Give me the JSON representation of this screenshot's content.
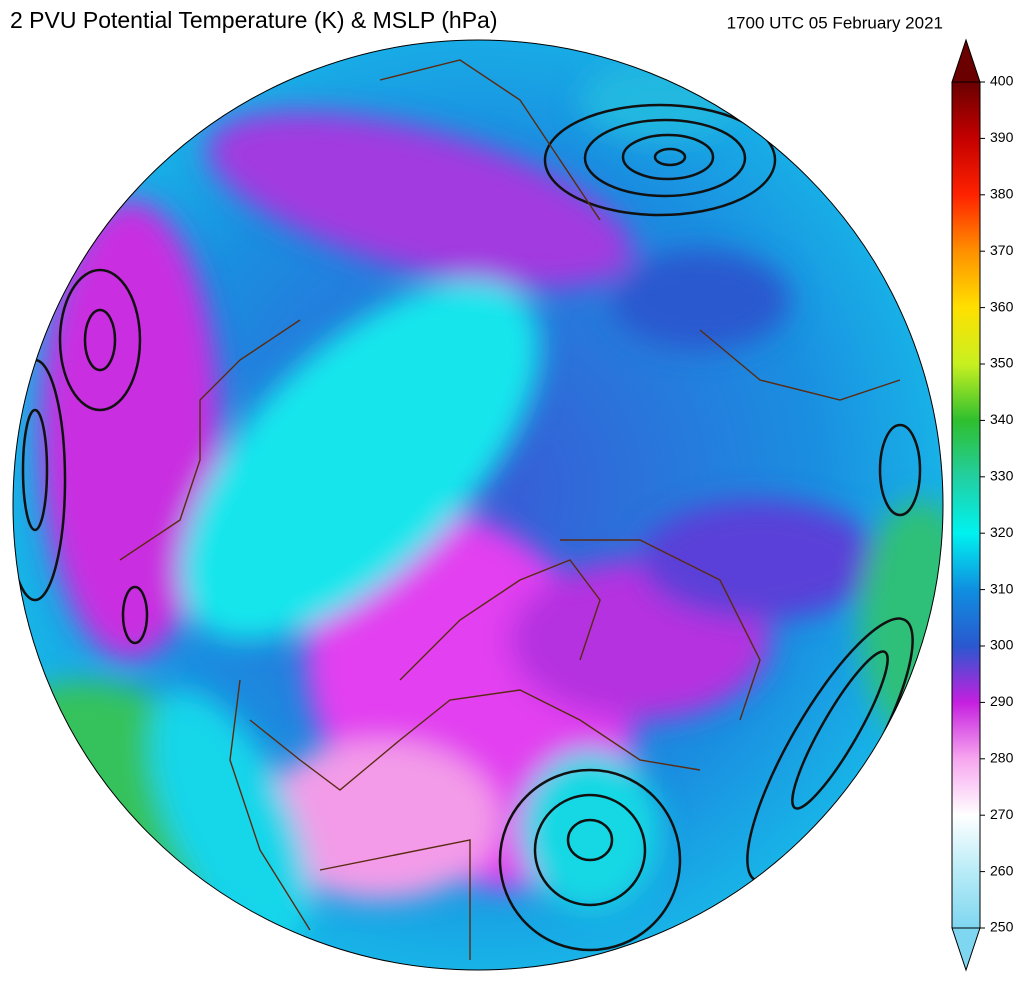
{
  "title": "2 PVU Potential Temperature (K) & MSLP (hPa)",
  "timestamp": "1700 UTC 05 February 2021",
  "colorbar": {
    "lim": [
      250,
      400
    ],
    "ticks": [
      250,
      260,
      270,
      280,
      290,
      300,
      310,
      320,
      330,
      340,
      350,
      360,
      370,
      380,
      390,
      400
    ],
    "colors": [
      "#7fd6f0",
      "#b8ecf7",
      "#ffffff",
      "#f7a6ef",
      "#c51fe0",
      "#2a58cf",
      "#0f8fe0",
      "#00f2f0",
      "#22cfa0",
      "#2fbf2f",
      "#c8f020",
      "#ffe000",
      "#ff9000",
      "#ff2200",
      "#c40000",
      "#6a0000"
    ]
  }
}
